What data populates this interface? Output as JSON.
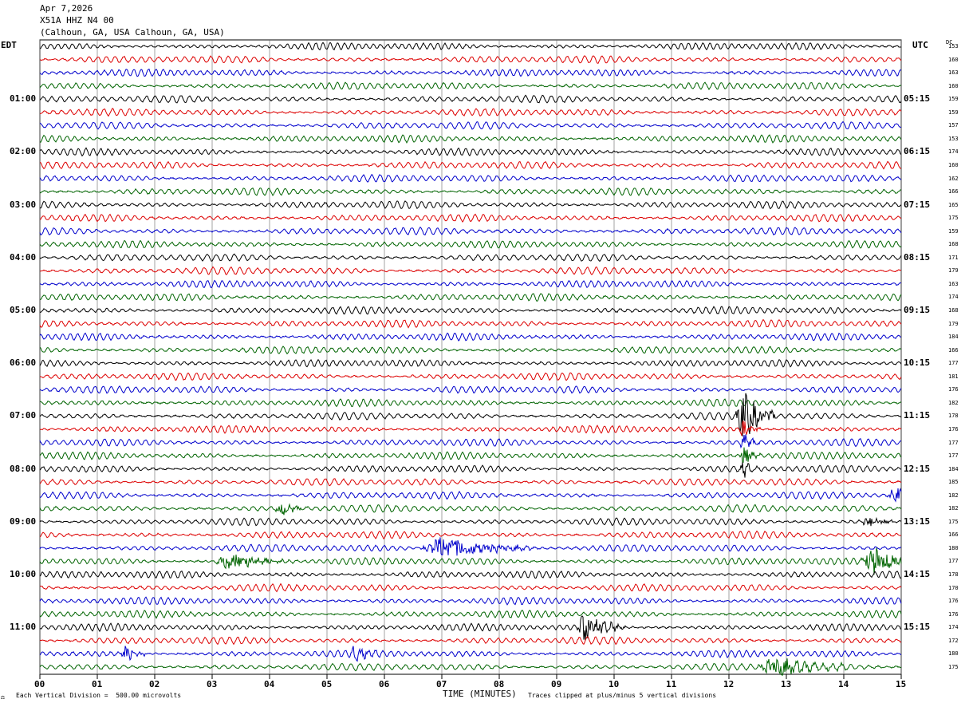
{
  "header": {
    "date": "Apr 7,2026",
    "station": "X51A HHZ N4 00",
    "location": "(Calhoun, GA, USA Calhoun, GA, USA)"
  },
  "axis": {
    "left_label": "EDT",
    "right_label": "UTC",
    "dc_label": "DC",
    "xlabel": "TIME (MINUTES)"
  },
  "footer": {
    "scale_note": "Each Vertical Division =  500.00 microvolts",
    "clip_note": "Traces clipped at plus/minus 5 vertical divisions",
    "corner_mark": "⚖"
  },
  "chart_data": {
    "type": "line",
    "title": "X51A HHZ N4 00",
    "xlabel": "TIME (MINUTES)",
    "xlim": [
      0,
      15
    ],
    "x_ticks": [
      "00",
      "01",
      "02",
      "03",
      "04",
      "05",
      "06",
      "07",
      "08",
      "09",
      "10",
      "11",
      "12",
      "13",
      "14",
      "15"
    ],
    "trace_count": 48,
    "trace_colors": [
      "#000000",
      "#dd0000",
      "#0000cc",
      "#006400"
    ],
    "left_hour_labels": [
      "01:00",
      "02:00",
      "03:00",
      "04:00",
      "05:00",
      "06:00",
      "07:00",
      "08:00",
      "09:00",
      "10:00",
      "11:00"
    ],
    "right_hour_labels": [
      "05:15",
      "06:15",
      "07:15",
      "08:15",
      "09:15",
      "10:15",
      "11:15",
      "12:15",
      "13:15",
      "14:15",
      "15:15"
    ],
    "dc_values": [
      "153",
      "160",
      "163",
      "160",
      "159",
      "159",
      "157",
      "153",
      "174",
      "160",
      "162",
      "166",
      "165",
      "175",
      "159",
      "168",
      "171",
      "179",
      "163",
      "174",
      "168",
      "179",
      "184",
      "166",
      "177",
      "181",
      "176",
      "182",
      "178",
      "176",
      "177",
      "177",
      "184",
      "185",
      "182",
      "182",
      "175",
      "166",
      "180",
      "177",
      "178",
      "170",
      "176",
      "176",
      "174",
      "172",
      "180",
      "175"
    ],
    "events": [
      {
        "trace": 28,
        "minute": 12.25,
        "amplitude": 4.0,
        "width_min": 0.6,
        "note": "large burst"
      },
      {
        "trace": 29,
        "minute": 12.25,
        "amplitude": 1.6,
        "width_min": 0.3
      },
      {
        "trace": 30,
        "minute": 12.25,
        "amplitude": 1.6,
        "width_min": 0.3
      },
      {
        "trace": 31,
        "minute": 12.25,
        "amplitude": 1.6,
        "width_min": 0.3
      },
      {
        "trace": 32,
        "minute": 12.25,
        "amplitude": 1.4,
        "width_min": 0.3
      },
      {
        "trace": 34,
        "minute": 14.9,
        "amplitude": 1.3,
        "width_min": 0.6
      },
      {
        "trace": 35,
        "minute": 4.2,
        "amplitude": 1.1,
        "width_min": 0.5
      },
      {
        "trace": 36,
        "minute": 14.4,
        "amplitude": 1.2,
        "width_min": 0.5
      },
      {
        "trace": 38,
        "minute": 7.0,
        "amplitude": 2.0,
        "width_min": 1.6
      },
      {
        "trace": 39,
        "minute": 3.3,
        "amplitude": 1.4,
        "width_min": 1.2
      },
      {
        "trace": 39,
        "minute": 14.5,
        "amplitude": 2.4,
        "width_min": 0.9
      },
      {
        "trace": 44,
        "minute": 9.5,
        "amplitude": 2.4,
        "width_min": 0.7
      },
      {
        "trace": 46,
        "minute": 1.5,
        "amplitude": 1.4,
        "width_min": 0.4
      },
      {
        "trace": 46,
        "minute": 5.5,
        "amplitude": 1.0,
        "width_min": 0.5
      },
      {
        "trace": 47,
        "minute": 12.8,
        "amplitude": 1.5,
        "width_min": 1.3
      }
    ]
  }
}
